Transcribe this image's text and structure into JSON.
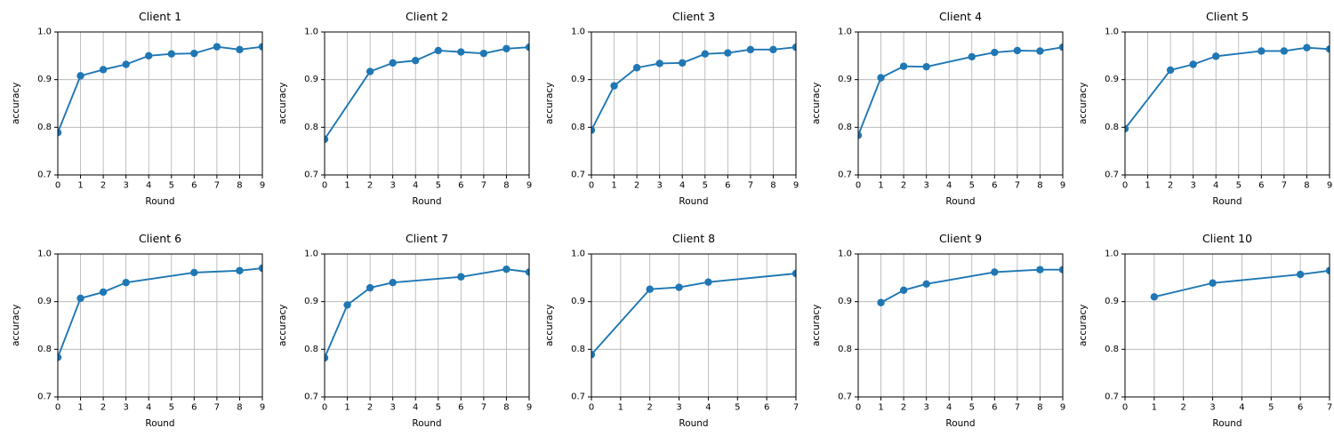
{
  "figure": {
    "background": "#ffffff",
    "line_color": "#1f77b4",
    "grid_color": "#b0b0b0",
    "spine_color": "#000000",
    "rows": 2,
    "cols": 5,
    "grid_on": true,
    "legend": "none"
  },
  "chart_data": [
    {
      "type": "line",
      "title": "Client 1",
      "xlabel": "Round",
      "ylabel": "accuracy",
      "xlim": [
        0,
        9
      ],
      "ylim": [
        0.7,
        1.0
      ],
      "xticks": [
        0,
        1,
        2,
        3,
        4,
        5,
        6,
        7,
        8,
        9
      ],
      "yticks": [
        0.7,
        0.8,
        0.9,
        1.0
      ],
      "marker": "circle",
      "x": [
        0,
        1,
        2,
        3,
        4,
        5,
        6,
        7,
        8,
        9
      ],
      "y": [
        0.789,
        0.908,
        0.921,
        0.932,
        0.95,
        0.954,
        0.955,
        0.969,
        0.963,
        0.969
      ]
    },
    {
      "type": "line",
      "title": "Client 2",
      "xlabel": "Round",
      "ylabel": "accuracy",
      "xlim": [
        0,
        9
      ],
      "ylim": [
        0.7,
        1.0
      ],
      "xticks": [
        0,
        1,
        2,
        3,
        4,
        5,
        6,
        7,
        8,
        9
      ],
      "yticks": [
        0.7,
        0.8,
        0.9,
        1.0
      ],
      "marker": "circle",
      "x": [
        0,
        2,
        3,
        4,
        5,
        6,
        7,
        8,
        9
      ],
      "y": [
        0.775,
        0.917,
        0.935,
        0.94,
        0.961,
        0.958,
        0.955,
        0.965,
        0.968
      ]
    },
    {
      "type": "line",
      "title": "Client 3",
      "xlabel": "Round",
      "ylabel": "accuracy",
      "xlim": [
        0,
        9
      ],
      "ylim": [
        0.7,
        1.0
      ],
      "xticks": [
        0,
        1,
        2,
        3,
        4,
        5,
        6,
        7,
        8,
        9
      ],
      "yticks": [
        0.7,
        0.8,
        0.9,
        1.0
      ],
      "marker": "circle",
      "x": [
        0,
        1,
        2,
        3,
        4,
        5,
        6,
        7,
        8,
        9
      ],
      "y": [
        0.794,
        0.887,
        0.925,
        0.934,
        0.935,
        0.954,
        0.956,
        0.963,
        0.963,
        0.968
      ]
    },
    {
      "type": "line",
      "title": "Client 4",
      "xlabel": "Round",
      "ylabel": "accuracy",
      "xlim": [
        0,
        9
      ],
      "ylim": [
        0.7,
        1.0
      ],
      "xticks": [
        0,
        1,
        2,
        3,
        4,
        5,
        6,
        7,
        8,
        9
      ],
      "yticks": [
        0.7,
        0.8,
        0.9,
        1.0
      ],
      "marker": "circle",
      "x": [
        0,
        1,
        2,
        3,
        5,
        6,
        7,
        8,
        9
      ],
      "y": [
        0.783,
        0.904,
        0.928,
        0.927,
        0.948,
        0.957,
        0.961,
        0.96,
        0.968
      ]
    },
    {
      "type": "line",
      "title": "Client 5",
      "xlabel": "Round",
      "ylabel": "accuracy",
      "xlim": [
        0,
        9
      ],
      "ylim": [
        0.7,
        1.0
      ],
      "xticks": [
        0,
        1,
        2,
        3,
        4,
        5,
        6,
        7,
        8,
        9
      ],
      "yticks": [
        0.7,
        0.8,
        0.9,
        1.0
      ],
      "marker": "circle",
      "x": [
        0,
        2,
        3,
        4,
        6,
        7,
        8,
        9
      ],
      "y": [
        0.797,
        0.92,
        0.932,
        0.949,
        0.96,
        0.96,
        0.967,
        0.964
      ]
    },
    {
      "type": "line",
      "title": "Client 6",
      "xlabel": "Round",
      "ylabel": "accuracy",
      "xlim": [
        0,
        9
      ],
      "ylim": [
        0.7,
        1.0
      ],
      "xticks": [
        0,
        1,
        2,
        3,
        4,
        5,
        6,
        7,
        8,
        9
      ],
      "yticks": [
        0.7,
        0.8,
        0.9,
        1.0
      ],
      "marker": "circle",
      "x": [
        0,
        1,
        2,
        3,
        6,
        8,
        9
      ],
      "y": [
        0.783,
        0.907,
        0.92,
        0.94,
        0.961,
        0.965,
        0.97
      ]
    },
    {
      "type": "line",
      "title": "Client 7",
      "xlabel": "Round",
      "ylabel": "accuracy",
      "xlim": [
        0,
        9
      ],
      "ylim": [
        0.7,
        1.0
      ],
      "xticks": [
        0,
        1,
        2,
        3,
        4,
        5,
        6,
        7,
        8,
        9
      ],
      "yticks": [
        0.7,
        0.8,
        0.9,
        1.0
      ],
      "marker": "circle",
      "x": [
        0,
        1,
        2,
        3,
        6,
        8,
        9
      ],
      "y": [
        0.782,
        0.893,
        0.929,
        0.94,
        0.952,
        0.968,
        0.962
      ]
    },
    {
      "type": "line",
      "title": "Client 8",
      "xlabel": "Round",
      "ylabel": "accuracy",
      "xlim": [
        0,
        7
      ],
      "ylim": [
        0.7,
        1.0
      ],
      "xticks": [
        0,
        1,
        2,
        3,
        4,
        5,
        6,
        7
      ],
      "yticks": [
        0.7,
        0.8,
        0.9,
        1.0
      ],
      "marker": "circle",
      "x": [
        0,
        2,
        3,
        4,
        7
      ],
      "y": [
        0.789,
        0.926,
        0.93,
        0.941,
        0.959
      ]
    },
    {
      "type": "line",
      "title": "Client 9",
      "xlabel": "Round",
      "ylabel": "accuracy",
      "xlim": [
        0,
        9
      ],
      "ylim": [
        0.7,
        1.0
      ],
      "xticks": [
        0,
        1,
        2,
        3,
        4,
        5,
        6,
        7,
        8,
        9
      ],
      "yticks": [
        0.7,
        0.8,
        0.9,
        1.0
      ],
      "marker": "circle",
      "x": [
        1,
        2,
        3,
        6,
        8,
        9
      ],
      "y": [
        0.898,
        0.924,
        0.937,
        0.962,
        0.967,
        0.967
      ]
    },
    {
      "type": "line",
      "title": "Client 10",
      "xlabel": "Round",
      "ylabel": "accuracy",
      "xlim": [
        0,
        7
      ],
      "ylim": [
        0.7,
        1.0
      ],
      "xticks": [
        0,
        1,
        2,
        3,
        4,
        5,
        6,
        7
      ],
      "yticks": [
        0.7,
        0.8,
        0.9,
        1.0
      ],
      "marker": "circle",
      "x": [
        1,
        3,
        6,
        7
      ],
      "y": [
        0.91,
        0.939,
        0.957,
        0.965
      ]
    }
  ]
}
